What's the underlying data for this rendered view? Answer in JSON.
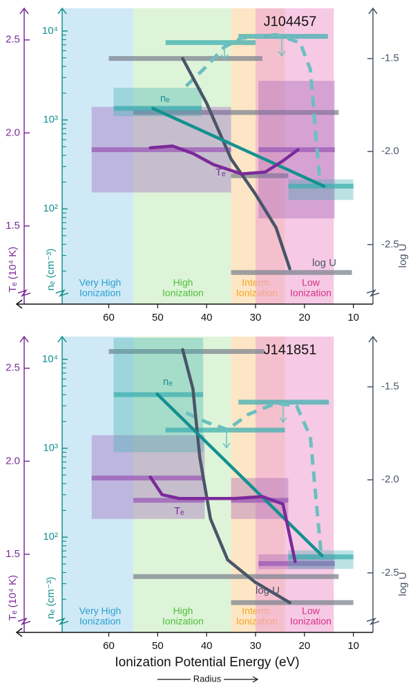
{
  "chart_data": [
    {
      "type": "line",
      "title": "J104457",
      "xlim": [
        78,
        6
      ],
      "xticks": [
        60,
        50,
        40,
        30,
        20,
        10
      ],
      "axes": {
        "te": {
          "label": "Tₑ (10⁴ K)",
          "color": "#7b2a9a",
          "bar_color": "#9b59b6",
          "ylim": [
            1.08,
            2.67
          ],
          "yticks": [
            1.5,
            {
              "value": 2,
              "label": "2.0"
            },
            2.5
          ]
        },
        "ne": {
          "label": "nₑ (cm⁻³)",
          "color": "#13918f",
          "bar_color": "#3fb0b0",
          "log_scale": true,
          "ylim": [
            8.5,
            18000
          ],
          "yticks": [
            {
              "value": 100,
              "label": "10²"
            },
            {
              "value": 1000,
              "label": "10³"
            },
            {
              "value": 10000,
              "label": "10⁴"
            }
          ],
          "minor_ticks": [
            20,
            30,
            40,
            50,
            60,
            70,
            80,
            90,
            200,
            300,
            400,
            500,
            600,
            700,
            800,
            900,
            2000,
            3000,
            4000,
            5000,
            6000,
            7000,
            8000,
            9000
          ]
        },
        "logu": {
          "label": "log U",
          "color": "#4a5568",
          "bar_color": "#7d8590",
          "ylim": [
            -2.82,
            -1.23
          ],
          "yticks": [
            -1.5,
            {
              "value": -2,
              "label": "-2.0"
            },
            -2.5
          ]
        }
      },
      "zones": [
        {
          "name": [
            "Very High",
            "Ionization"
          ],
          "range": [
            69.5,
            55
          ],
          "color": "#bfe3f3",
          "text_color": "#2a9fd0"
        },
        {
          "name": [
            "High",
            "Ionization"
          ],
          "range": [
            55,
            35
          ],
          "color": "#d3f0cc",
          "text_color": "#4cbf3a"
        },
        {
          "name": [
            "Interm.",
            "Ionization"
          ],
          "range": [
            35,
            24
          ],
          "color": "#fcd59e",
          "text_color": "#f5a623"
        },
        {
          "name": [
            "Low",
            "Ionization"
          ],
          "range": [
            30,
            14
          ],
          "color": "#f0a6d2",
          "text_color": "#d6308a"
        }
      ],
      "measurements": [
        {
          "axis": "logu",
          "x": [
            60,
            28.6
          ],
          "value": -1.5
        },
        {
          "axis": "logu",
          "x": [
            55,
            13
          ],
          "value": -1.79
        },
        {
          "axis": "logu",
          "x": [
            35,
            23.3
          ],
          "value": -2.13
        },
        {
          "axis": "logu",
          "x": [
            35,
            10.3
          ],
          "value": -2.65
        },
        {
          "axis": "te",
          "x": [
            63.5,
            35
          ],
          "value": 1.91,
          "range": [
            1.68,
            2.14
          ]
        },
        {
          "axis": "te",
          "x": [
            29.4,
            13.8
          ],
          "value": 1.91,
          "range": [
            1.54,
            2.28
          ]
        },
        {
          "axis": "ne",
          "x": [
            59,
            41
          ],
          "value": 1350,
          "range": [
            1100,
            2300
          ]
        },
        {
          "axis": "ne",
          "x": [
            48.4,
            30
          ],
          "value": 7400
        },
        {
          "axis": "ne",
          "x": [
            33.5,
            15.2
          ],
          "value": 8700
        },
        {
          "axis": "ne",
          "x": [
            23.3,
            10
          ],
          "value": 180,
          "range": [
            126,
            215
          ]
        }
      ],
      "series": [
        {
          "axis": "ne",
          "style": "dashed",
          "color": "#6cbfc0",
          "x": [
            44.2,
            39.9,
            36.4,
            32.9,
            25.8,
            20.9,
            18.8,
            16.9
          ],
          "values": [
            2400,
            4070,
            6600,
            8300,
            9100,
            7400,
            3700,
            214
          ]
        },
        {
          "name": "log U",
          "axis": "logu",
          "style": "solid",
          "color": "#4a5568",
          "x": [
            44.9,
            40,
            35,
            30,
            25.8,
            23
          ],
          "values": [
            -1.5,
            -1.74,
            -2.04,
            -2.23,
            -2.41,
            -2.63
          ]
        },
        {
          "name": "nₑ",
          "axis": "ne",
          "style": "solid",
          "color": "#13918f",
          "x": [
            51,
            16
          ],
          "values": [
            1350,
            180
          ]
        },
        {
          "name": "Tₑ",
          "axis": "te",
          "style": "solid",
          "color": "#7b2a9a",
          "x": [
            51.5,
            47,
            42.8,
            38.6,
            32.9,
            28,
            24.4,
            21.3
          ],
          "values": [
            1.92,
            1.93,
            1.89,
            1.83,
            1.78,
            1.79,
            1.85,
            1.91
          ]
        }
      ]
    },
    {
      "type": "line",
      "title": "J141851",
      "xlim": [
        78,
        6
      ],
      "xticks": [
        60,
        50,
        40,
        30,
        20,
        10
      ],
      "xlabel": "Ionization Potential Energy (eV)",
      "radius_label": "Radius",
      "axes": {
        "te": {
          "label": "Tₑ (10⁴ K)",
          "color": "#7b2a9a",
          "bar_color": "#9b59b6",
          "ylim": [
            1.08,
            2.67
          ],
          "yticks": [
            1.5,
            {
              "value": 2,
              "label": "2.0"
            },
            2.5
          ]
        },
        "ne": {
          "label": "nₑ (cm⁻³)",
          "color": "#13918f",
          "bar_color": "#3fb0b0",
          "log_scale": true,
          "ylim": [
            8.5,
            18000
          ],
          "yticks": [
            {
              "value": 100,
              "label": "10²"
            },
            {
              "value": 1000,
              "label": "10³"
            },
            {
              "value": 10000,
              "label": "10⁴"
            }
          ],
          "minor_ticks": [
            20,
            30,
            40,
            50,
            60,
            70,
            80,
            90,
            200,
            300,
            400,
            500,
            600,
            700,
            800,
            900,
            2000,
            3000,
            4000,
            5000,
            6000,
            7000,
            8000,
            9000
          ]
        },
        "logu": {
          "label": "log U",
          "color": "#4a5568",
          "bar_color": "#7d8590",
          "ylim": [
            -2.82,
            -1.23
          ],
          "yticks": [
            -1.5,
            {
              "value": -2,
              "label": "-2.0"
            },
            -2.5
          ]
        }
      },
      "zones": [
        {
          "name": [
            "Very High",
            "Ionization"
          ],
          "range": [
            69.5,
            55
          ],
          "color": "#bfe3f3",
          "text_color": "#2a9fd0"
        },
        {
          "name": [
            "High",
            "Ionization"
          ],
          "range": [
            55,
            35
          ],
          "color": "#d3f0cc",
          "text_color": "#4cbf3a"
        },
        {
          "name": [
            "Interm.",
            "Ionization"
          ],
          "range": [
            35,
            24
          ],
          "color": "#fcd59e",
          "text_color": "#f5a623"
        },
        {
          "name": [
            "Low",
            "Ionization"
          ],
          "range": [
            30,
            14
          ],
          "color": "#f0a6d2",
          "text_color": "#d6308a"
        }
      ],
      "measurements": [
        {
          "axis": "logu",
          "x": [
            60,
            28.2
          ],
          "value": -1.31
        },
        {
          "axis": "logu",
          "x": [
            55,
            13
          ],
          "value": -2.52
        },
        {
          "axis": "logu",
          "x": [
            35,
            10
          ],
          "value": -2.66
        },
        {
          "axis": "te",
          "x": [
            63.5,
            40.4
          ],
          "value": 1.91,
          "range": [
            1.69,
            2.14
          ]
        },
        {
          "axis": "te",
          "x": [
            55,
            40.4
          ],
          "value": 1.79
        },
        {
          "axis": "te",
          "x": [
            35,
            23.3
          ],
          "value": 1.79,
          "range": [
            1.69,
            1.91
          ]
        },
        {
          "axis": "te",
          "x": [
            29.4,
            13.8
          ],
          "value": 1.45,
          "range": [
            1.42,
            1.5
          ]
        },
        {
          "axis": "ne",
          "x": [
            59,
            40.7
          ],
          "value": 4000,
          "range": [
            900,
            17400
          ]
        },
        {
          "axis": "ne",
          "x": [
            33.5,
            15
          ],
          "value": 3300
        },
        {
          "axis": "ne",
          "x": [
            48.4,
            24
          ],
          "value": 1600
        },
        {
          "axis": "ne",
          "x": [
            23.3,
            10
          ],
          "value": 60,
          "range": [
            44,
            71
          ]
        }
      ],
      "series": [
        {
          "axis": "ne",
          "style": "dashed",
          "color": "#6cbfc0",
          "x": [
            44.2,
            39.9,
            35.7,
            31.5,
            25.8,
            21.6,
            18.8,
            16.6
          ],
          "values": [
            2500,
            1950,
            1620,
            2400,
            3200,
            3000,
            1350,
            65
          ]
        },
        {
          "name": "log U",
          "axis": "logu",
          "style": "solid",
          "color": "#4a5568",
          "x": [
            44.9,
            42.8,
            41.4,
            39.2,
            35.7,
            30.1,
            23
          ],
          "values": [
            -1.3,
            -1.51,
            -1.88,
            -2.21,
            -2.43,
            -2.55,
            -2.66
          ]
        },
        {
          "name": "nₑ",
          "axis": "ne",
          "style": "solid",
          "color": "#13918f",
          "x": [
            50.1,
            16.4
          ],
          "values": [
            4070,
            62
          ]
        },
        {
          "name": "Tₑ",
          "axis": "te",
          "style": "solid",
          "color": "#7b2a9a",
          "x": [
            51.5,
            49.1,
            45.6,
            39.9,
            34.3,
            28.6,
            24.4,
            21.9
          ],
          "values": [
            1.915,
            1.82,
            1.8,
            1.8,
            1.8,
            1.81,
            1.77,
            1.46
          ]
        }
      ]
    }
  ]
}
